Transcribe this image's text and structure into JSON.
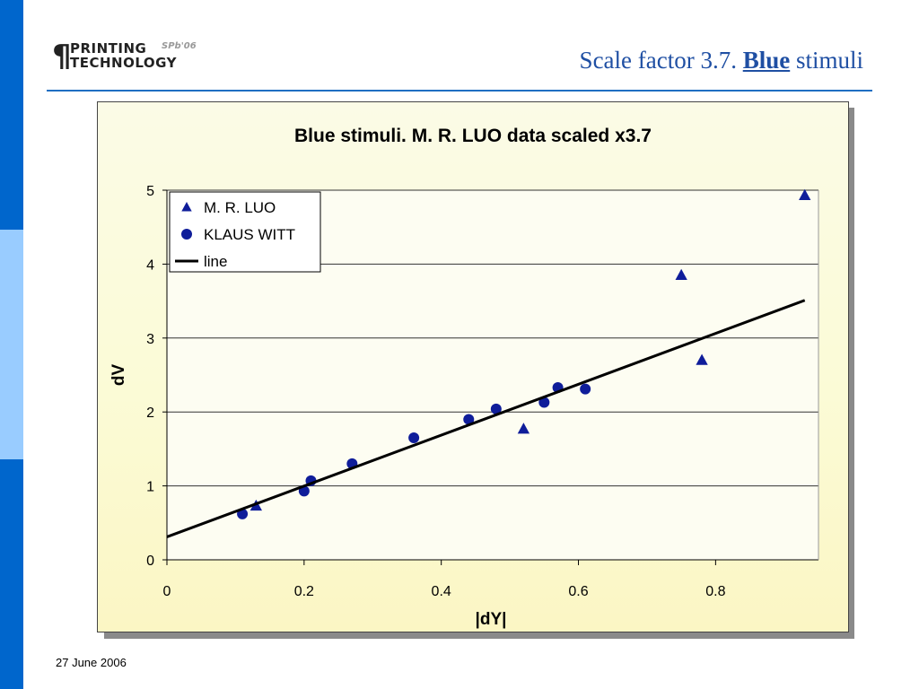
{
  "logo": {
    "mark": "¶",
    "line1": "PRINTING",
    "line2": "TECHNOLOGY",
    "tag": "SPb'06"
  },
  "slide": {
    "title_pre": "Scale factor 3.7. ",
    "title_highlight": "Blue",
    "title_post": " stimuli",
    "date": "27 June 2006"
  },
  "colors": {
    "accent": "#0066cc",
    "accent_light": "#99ccff",
    "title_text": "#1f4fa3",
    "marker": "#0f1d9a"
  },
  "chart_data": {
    "type": "scatter",
    "title": "Blue stimuli. M. R. LUO data scaled x3.7",
    "xlabel": "|dY|",
    "ylabel": "dV",
    "xlim": [
      0,
      0.95
    ],
    "ylim": [
      0,
      5
    ],
    "xticks": [
      "0",
      "0.2",
      "0.4",
      "0.6",
      "0.8"
    ],
    "yticks": [
      "0",
      "1",
      "2",
      "3",
      "4",
      "5"
    ],
    "grid": "horizontal",
    "legend_position": "top-left",
    "series": [
      {
        "name": "M. R. LUO",
        "marker": "triangle",
        "x": [
          0.13,
          0.52,
          0.75,
          0.78,
          0.93
        ],
        "y": [
          0.73,
          1.77,
          3.85,
          2.7,
          4.93
        ]
      },
      {
        "name": "KLAUS WITT",
        "marker": "circle",
        "x": [
          0.11,
          0.2,
          0.21,
          0.27,
          0.36,
          0.44,
          0.48,
          0.55,
          0.57,
          0.61
        ],
        "y": [
          0.62,
          0.93,
          1.07,
          1.3,
          1.65,
          1.9,
          2.04,
          2.13,
          2.33,
          2.31
        ]
      },
      {
        "name": "line",
        "marker": "line",
        "x": [
          0,
          0.93
        ],
        "y": [
          0.31,
          3.51
        ]
      }
    ]
  }
}
